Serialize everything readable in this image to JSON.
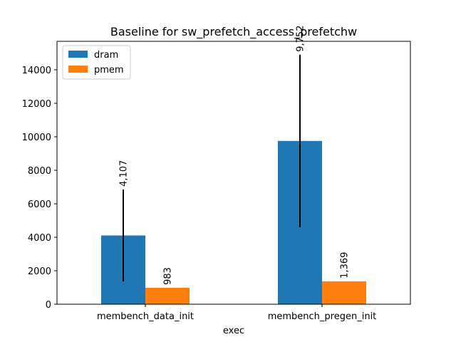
{
  "chart_data": {
    "type": "bar",
    "title": "Baseline for sw_prefetch_access_prefetchw",
    "xlabel": "exec",
    "ylabel": "",
    "categories": [
      "membench_data_init",
      "membench_pregen_init"
    ],
    "series": [
      {
        "name": "dram",
        "values": [
          4107,
          9752
        ],
        "error": [
          2750,
          5150
        ],
        "labels": [
          "4,107",
          "9,752"
        ],
        "color": "#1f77b4"
      },
      {
        "name": "pmem",
        "values": [
          983,
          1369
        ],
        "error": [
          0,
          0
        ],
        "labels": [
          "983",
          "1,369"
        ],
        "color": "#ff7f0e"
      }
    ],
    "ylim": [
      0,
      15700
    ],
    "yticks": [
      0,
      2000,
      4000,
      6000,
      8000,
      10000,
      12000,
      14000
    ],
    "ytick_labels": [
      "0",
      "2000",
      "4000",
      "6000",
      "8000",
      "10000",
      "12000",
      "14000"
    ],
    "grid": false,
    "legend_position": "upper left"
  }
}
